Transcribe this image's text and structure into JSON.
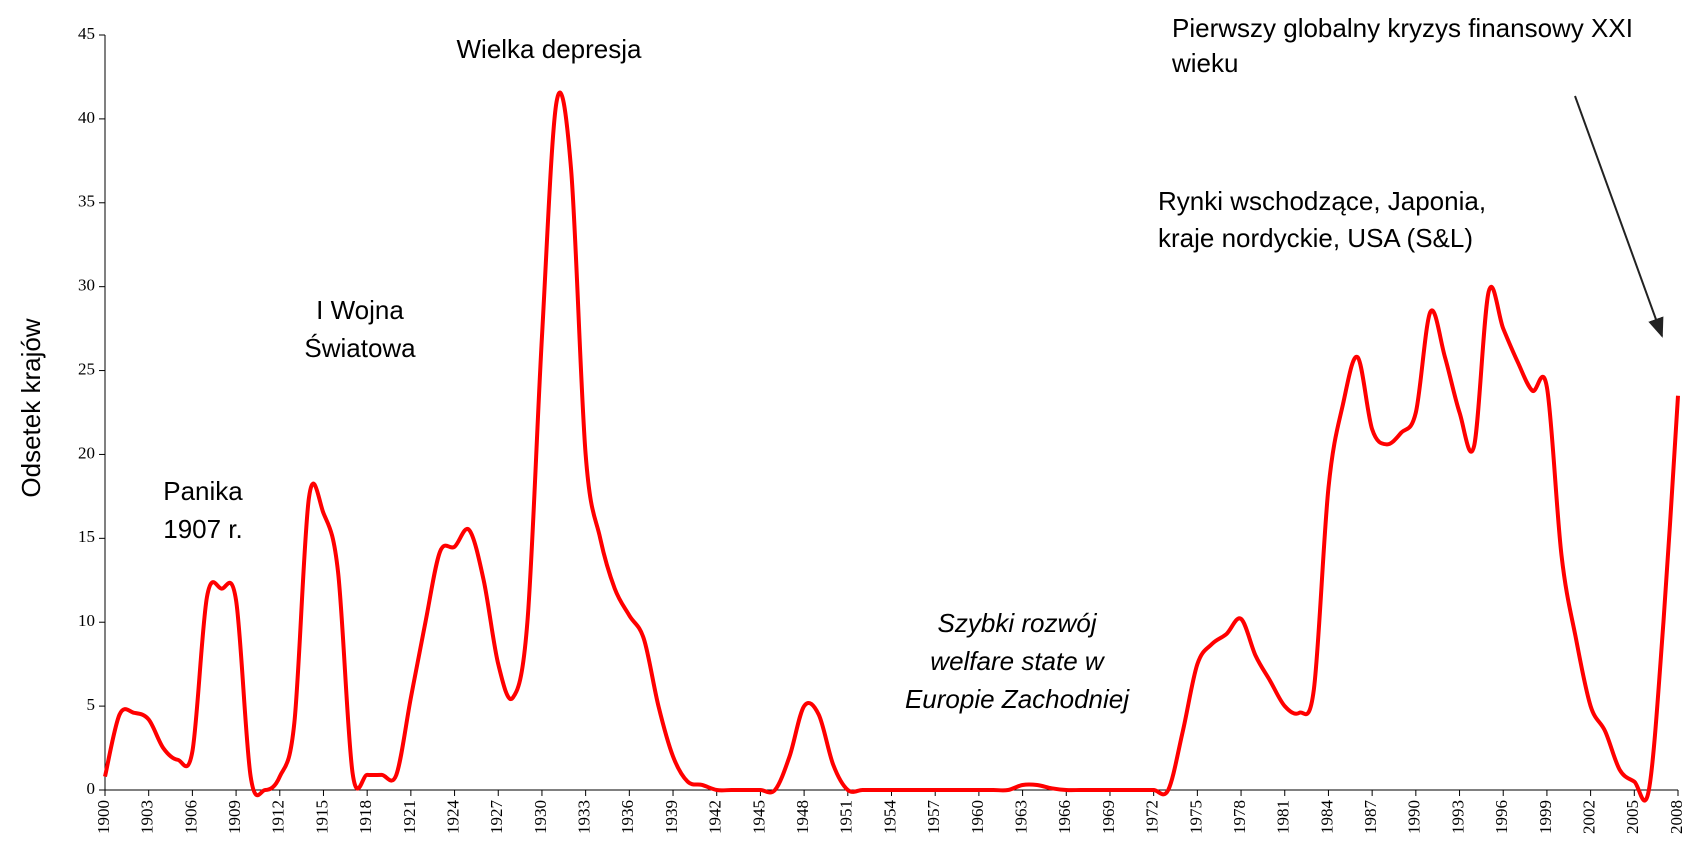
{
  "chart_data": {
    "type": "line",
    "y_label": "Odsetek krajów",
    "x": [
      1900,
      1901,
      1902,
      1903,
      1904,
      1905,
      1906,
      1907,
      1908,
      1909,
      1910,
      1911,
      1912,
      1913,
      1914,
      1915,
      1916,
      1917,
      1918,
      1919,
      1920,
      1921,
      1922,
      1923,
      1924,
      1925,
      1926,
      1927,
      1928,
      1929,
      1930,
      1931,
      1932,
      1933,
      1934,
      1935,
      1936,
      1937,
      1938,
      1939,
      1940,
      1941,
      1942,
      1943,
      1944,
      1945,
      1946,
      1947,
      1948,
      1949,
      1950,
      1951,
      1952,
      1953,
      1954,
      1955,
      1956,
      1957,
      1958,
      1959,
      1960,
      1961,
      1962,
      1963,
      1964,
      1965,
      1966,
      1967,
      1968,
      1969,
      1970,
      1971,
      1972,
      1973,
      1974,
      1975,
      1976,
      1977,
      1978,
      1979,
      1980,
      1981,
      1982,
      1983,
      1984,
      1985,
      1986,
      1987,
      1988,
      1989,
      1990,
      1991,
      1992,
      1993,
      1994,
      1995,
      1996,
      1997,
      1998,
      1999,
      2000,
      2001,
      2002,
      2003,
      2004,
      2005,
      2006,
      2007,
      2008
    ],
    "series": [
      {
        "color": "#ff0000",
        "values": [
          0.8,
          4.5,
          4.6,
          4.2,
          2.5,
          1.8,
          2.3,
          11.5,
          12,
          11.3,
          0.8,
          0,
          0.8,
          4,
          17.4,
          16.5,
          13,
          1,
          0.9,
          0.9,
          0.9,
          5.5,
          10,
          14.2,
          14.5,
          15.5,
          12.5,
          7.5,
          5.5,
          10,
          27,
          41,
          37,
          20,
          15,
          12,
          10.4,
          9,
          5,
          2,
          0.5,
          0.3,
          0,
          0,
          0,
          0,
          0,
          2,
          5,
          4.5,
          1.5,
          0,
          0,
          0,
          0,
          0,
          0,
          0,
          0,
          0,
          0,
          0,
          0,
          0.3,
          0.3,
          0.1,
          0,
          0,
          0,
          0,
          0,
          0,
          0,
          0,
          3.5,
          7.5,
          8.7,
          9.3,
          10.2,
          8,
          6.5,
          5,
          4.6,
          6,
          18,
          23,
          25.8,
          21.5,
          20.6,
          21.3,
          22.5,
          28.5,
          25.8,
          22.5,
          20.5,
          29.7,
          27.5,
          25.5,
          23.8,
          24,
          14,
          9,
          5,
          3.5,
          1.2,
          0.5,
          0,
          10,
          23.5
        ]
      }
    ],
    "xlim": [
      1900,
      2008
    ],
    "xticks": [
      1900,
      1903,
      1906,
      1909,
      1912,
      1915,
      1918,
      1921,
      1924,
      1927,
      1930,
      1933,
      1936,
      1939,
      1942,
      1945,
      1948,
      1951,
      1954,
      1957,
      1960,
      1963,
      1966,
      1969,
      1972,
      1975,
      1978,
      1981,
      1984,
      1987,
      1990,
      1993,
      1996,
      1999,
      2002,
      2005,
      2008
    ],
    "ylim": [
      0,
      45
    ],
    "yticks": [
      0,
      5,
      10,
      15,
      20,
      25,
      30,
      35,
      40,
      45
    ],
    "annotations": [
      {
        "lines": [
          "Wielka depresja"
        ]
      },
      {
        "lines": [
          "I Wojna",
          "Światowa"
        ]
      },
      {
        "lines": [
          "Panika",
          "1907 r."
        ]
      },
      {
        "lines": [
          "Szybki rozwój",
          "welfare state w",
          "Europie Zachodniej"
        ]
      },
      {
        "lines": [
          "Rynki wschodzące, Japonia,",
          "kraje nordyckie, USA (S&L)"
        ]
      },
      {
        "lines": [
          "Pierwszy globalny kryzys finansowy XXI",
          "wieku"
        ]
      }
    ]
  }
}
